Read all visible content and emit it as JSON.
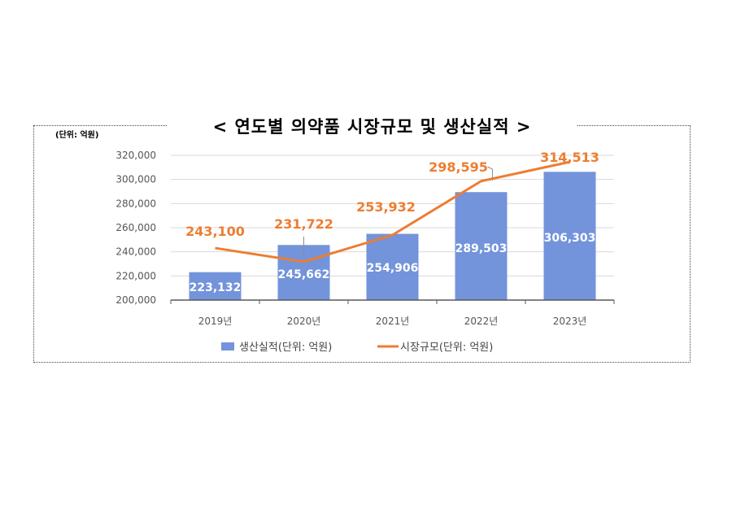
{
  "chart_data": {
    "type": "bar",
    "title": "< 연도별 의약품 시장규모 및 생산실적 >",
    "unit_label": "(단위: 억원)",
    "categories": [
      "2019년",
      "2020년",
      "2021년",
      "2022년",
      "2023년"
    ],
    "ylim": [
      200000,
      320000
    ],
    "yticks": [
      "200,000",
      "220,000",
      "240,000",
      "260,000",
      "280,000",
      "300,000",
      "320,000"
    ],
    "grid": true,
    "legend_position": "bottom",
    "series": [
      {
        "name": "생산실적(단위: 억원)",
        "type": "bar",
        "color": "#7393db",
        "values": [
          223132,
          245662,
          254906,
          289503,
          306303
        ],
        "labels": [
          "223,132",
          "245,662",
          "254,906",
          "289,503",
          "306,303"
        ]
      },
      {
        "name": "시장규모(단위: 억원)",
        "type": "line",
        "color": "#ed7d31",
        "values": [
          243100,
          231722,
          253932,
          298595,
          314513
        ],
        "labels": [
          "243,100",
          "231,722",
          "253,932",
          "298,595",
          "314,513"
        ]
      }
    ]
  }
}
